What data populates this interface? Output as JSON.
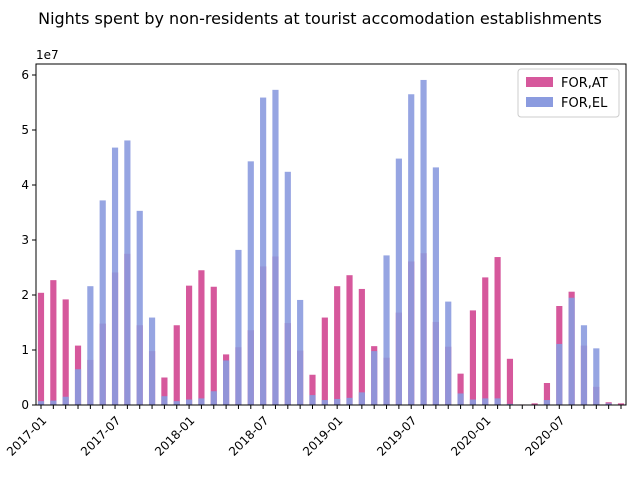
{
  "chart_data": {
    "type": "bar",
    "title": "Nights spent by non-residents at tourist accomodation establishments",
    "y_multiplier_label": "1e7",
    "ylim": [
      0,
      62000000
    ],
    "y_ticks": [
      0,
      10000000,
      20000000,
      30000000,
      40000000,
      50000000,
      60000000
    ],
    "y_tick_labels": [
      "0",
      "1",
      "2",
      "3",
      "4",
      "5",
      "6"
    ],
    "x_tick_labels": [
      {
        "index": 0,
        "label": "2017-01"
      },
      {
        "index": 6,
        "label": "2017-07"
      },
      {
        "index": 12,
        "label": "2018-01"
      },
      {
        "index": 18,
        "label": "2018-07"
      },
      {
        "index": 24,
        "label": "2019-01"
      },
      {
        "index": 30,
        "label": "2019-07"
      },
      {
        "index": 36,
        "label": "2020-01"
      },
      {
        "index": 42,
        "label": "2020-07"
      }
    ],
    "categories": [
      "2017-01",
      "2017-02",
      "2017-03",
      "2017-04",
      "2017-05",
      "2017-06",
      "2017-07",
      "2017-08",
      "2017-09",
      "2017-10",
      "2017-11",
      "2017-12",
      "2018-01",
      "2018-02",
      "2018-03",
      "2018-04",
      "2018-05",
      "2018-06",
      "2018-07",
      "2018-08",
      "2018-09",
      "2018-10",
      "2018-11",
      "2018-12",
      "2019-01",
      "2019-02",
      "2019-03",
      "2019-04",
      "2019-05",
      "2019-06",
      "2019-07",
      "2019-08",
      "2019-09",
      "2019-10",
      "2019-11",
      "2019-12",
      "2020-01",
      "2020-02",
      "2020-03",
      "2020-04",
      "2020-05",
      "2020-06",
      "2020-07",
      "2020-08",
      "2020-09",
      "2020-10",
      "2020-11",
      "2020-12"
    ],
    "series": [
      {
        "name": "FOR,AT",
        "color": "#d6589c",
        "values": [
          20400000,
          22700000,
          19200000,
          10800000,
          8200000,
          14800000,
          24100000,
          27500000,
          14500000,
          9800000,
          5000000,
          14500000,
          21700000,
          24500000,
          21500000,
          9200000,
          10500000,
          13600000,
          25200000,
          27000000,
          14900000,
          9900000,
          5500000,
          15900000,
          21600000,
          23600000,
          21100000,
          10700000,
          8600000,
          16800000,
          26100000,
          27600000,
          15100000,
          10600000,
          5700000,
          17200000,
          23200000,
          26900000,
          8400000,
          100000,
          300000,
          4000000,
          18000000,
          20600000,
          10800000,
          3300000,
          500000,
          300000
        ]
      },
      {
        "name": "FOR,EL",
        "color": "#8b9bdf",
        "values": [
          700000,
          800000,
          1500000,
          6500000,
          21600000,
          37200000,
          46800000,
          48100000,
          35300000,
          15900000,
          1600000,
          700000,
          1000000,
          1200000,
          2500000,
          8100000,
          28200000,
          44300000,
          55900000,
          57300000,
          42400000,
          19100000,
          1800000,
          900000,
          1100000,
          1300000,
          2300000,
          9800000,
          27200000,
          44800000,
          56500000,
          59100000,
          43200000,
          18800000,
          2100000,
          1000000,
          1200000,
          1200000,
          200000,
          0,
          100000,
          900000,
          11100000,
          19500000,
          14500000,
          10300000,
          300000,
          100000
        ]
      }
    ],
    "legend": {
      "position": "top-right"
    },
    "grid": false
  }
}
